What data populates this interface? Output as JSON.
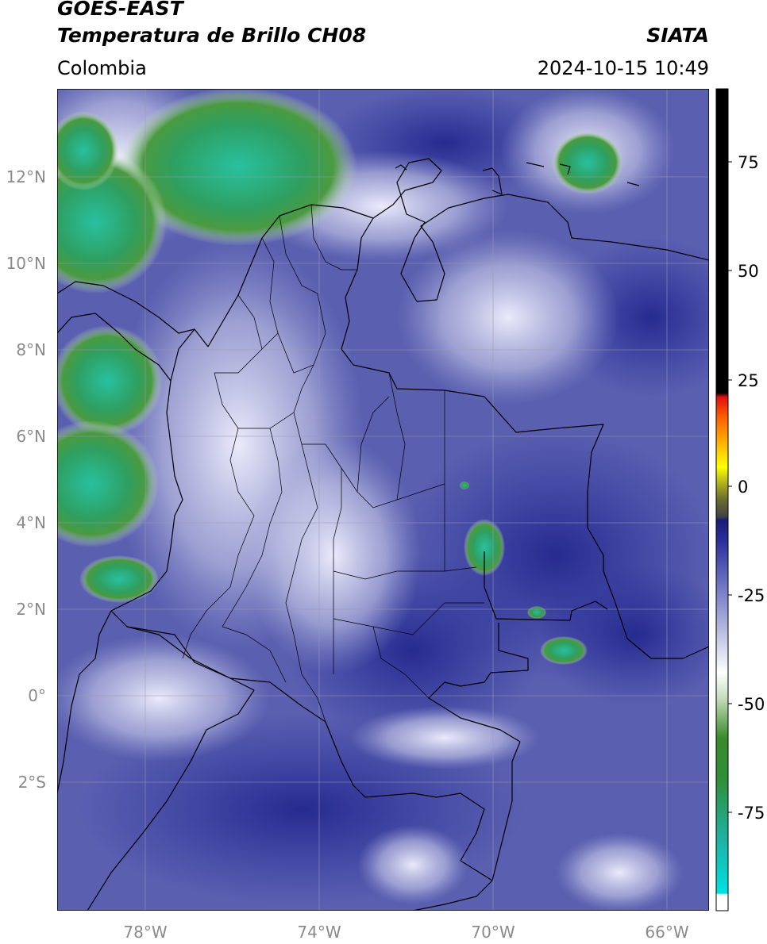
{
  "header": {
    "satellite": "GOES-EAST",
    "product": "Temperatura de Brillo CH08",
    "agency": "SIATA",
    "region": "Colombia",
    "datetime": "2024-10-15 10:49"
  },
  "map": {
    "lat_labels": [
      "12°N",
      "10°N",
      "8°N",
      "6°N",
      "4°N",
      "2°N",
      "0°",
      "2°S"
    ],
    "lon_labels": [
      "78°W",
      "74°W",
      "70°W",
      "66°W"
    ],
    "extent": {
      "lon_min": -80.0,
      "lon_max": -65.0,
      "lat_min": -5.0,
      "lat_max": 14.0
    },
    "background_color": "#5a5fb0"
  },
  "colorbar": {
    "tick_labels": [
      "75",
      "50",
      "25",
      "0",
      "-25",
      "-50",
      "-75"
    ],
    "range": [
      -93,
      90
    ],
    "colors": {
      "warm": "#000000",
      "red": "#e01010",
      "orange": "#ff8000",
      "yellow": "#ffff00",
      "dark_blue": "#1a1a8a",
      "mid_blue": "#6a70c0",
      "white": "#ffffff",
      "green": "#3a8a2a",
      "teal": "#20c0a0",
      "cyan": "#00e0e0"
    }
  }
}
